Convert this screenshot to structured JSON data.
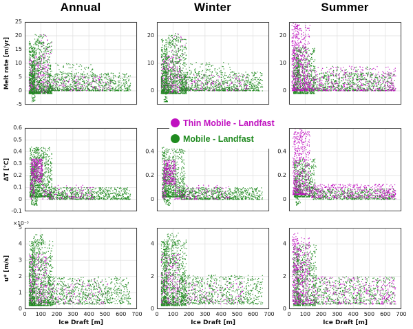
{
  "figure": {
    "background": "#ffffff",
    "grid_color": "#dedede",
    "axis_color": "#444444",
    "tick_text_color": "#111111"
  },
  "chart_data": {
    "type": "scatter",
    "columns": [
      "Annual",
      "Winter",
      "Summer"
    ],
    "xlabel": "Ice Draft [m]",
    "xlim": [
      0,
      700
    ],
    "xticks": [
      0,
      100,
      200,
      300,
      400,
      500,
      600,
      700
    ],
    "legend_position": "center between rows 1 and 2",
    "grid": true,
    "series": [
      {
        "name": "Thin Mobile - Landfast",
        "color": "#c011c0"
      },
      {
        "name": "Mobile - Landfast",
        "color": "#1f8a1f"
      }
    ],
    "rows": [
      {
        "key": "melt_rate",
        "ylabel": "Melt rate [m/yr]",
        "ylim": [
          -5,
          25
        ],
        "yticks_left": [
          -5,
          0,
          5,
          10,
          15,
          20,
          25
        ],
        "yticks_other": [
          0,
          10,
          20
        ],
        "multiplier": ""
      },
      {
        "key": "delta_t",
        "ylabel": "ΔT [°C]",
        "ylim": [
          -0.1,
          0.6
        ],
        "yticks_left": [
          -0.1,
          0,
          0.1,
          0.2,
          0.3,
          0.4,
          0.5,
          0.6
        ],
        "yticks_other": [
          0,
          0.2,
          0.4
        ],
        "multiplier": ""
      },
      {
        "key": "u_star",
        "ylabel": "u* [m/s]",
        "ylim": [
          0,
          5
        ],
        "yticks_left": [
          0,
          1,
          2,
          3,
          4,
          5
        ],
        "yticks_other": [
          0,
          2,
          4
        ],
        "multiplier": "×10⁻³"
      }
    ],
    "panels": [
      {
        "row": 0,
        "col": 0,
        "clusters": [
          {
            "s": 0,
            "n": 420,
            "x": [
              28,
              150
            ],
            "y": [
              -1,
              13
            ],
            "xp": 1.3,
            "yp": 2.0,
            "qx": 7
          },
          {
            "s": 0,
            "n": 190,
            "x": [
              150,
              540
            ],
            "y": [
              0,
              5.5
            ],
            "xp": 1.25,
            "yp": 1.8
          },
          {
            "s": 0,
            "n": 22,
            "x": [
              80,
              170
            ],
            "y": [
              13,
              21
            ],
            "xp": 1,
            "yp": 1
          },
          {
            "s": 1,
            "n": 850,
            "x": [
              28,
              170
            ],
            "y": [
              -1,
              18
            ],
            "xp": 1.35,
            "yp": 2.1,
            "qx": 7
          },
          {
            "s": 1,
            "n": 150,
            "x": [
              44,
              64
            ],
            "y": [
              -4,
              16
            ],
            "xp": 1,
            "yp": 1.2
          },
          {
            "s": 1,
            "n": 680,
            "x": [
              150,
              660
            ],
            "y": [
              0,
              6.5
            ],
            "xp": 1.15,
            "yp": 1.7
          },
          {
            "s": 1,
            "n": 55,
            "x": [
              190,
              430
            ],
            "y": [
              6,
              10
            ],
            "xp": 1.1,
            "yp": 1.4
          },
          {
            "s": 1,
            "n": 35,
            "x": [
              60,
              130
            ],
            "y": [
              17,
              20.5
            ],
            "xp": 1,
            "yp": 1
          }
        ]
      },
      {
        "row": 0,
        "col": 1,
        "clusters": [
          {
            "s": 0,
            "n": 400,
            "x": [
              28,
              150
            ],
            "y": [
              -1,
              13
            ],
            "xp": 1.3,
            "yp": 2.0,
            "qx": 7
          },
          {
            "s": 0,
            "n": 230,
            "x": [
              150,
              570
            ],
            "y": [
              0,
              6
            ],
            "xp": 1.25,
            "yp": 1.8
          },
          {
            "s": 0,
            "n": 16,
            "x": [
              90,
              180
            ],
            "y": [
              13,
              21
            ],
            "xp": 1,
            "yp": 1
          },
          {
            "s": 1,
            "n": 880,
            "x": [
              28,
              185
            ],
            "y": [
              -1,
              19
            ],
            "xp": 1.3,
            "yp": 2.0,
            "qx": 7
          },
          {
            "s": 1,
            "n": 130,
            "x": [
              44,
              66
            ],
            "y": [
              -4,
              17
            ],
            "xp": 1,
            "yp": 1.2
          },
          {
            "s": 1,
            "n": 720,
            "x": [
              150,
              660
            ],
            "y": [
              0,
              7
            ],
            "xp": 1.12,
            "yp": 1.7
          },
          {
            "s": 1,
            "n": 45,
            "x": [
              200,
              460
            ],
            "y": [
              7,
              10.5
            ],
            "xp": 1.1,
            "yp": 1.4
          },
          {
            "s": 1,
            "n": 30,
            "x": [
              70,
              150
            ],
            "y": [
              17,
              21
            ],
            "xp": 1,
            "yp": 1
          }
        ]
      },
      {
        "row": 0,
        "col": 2,
        "clusters": [
          {
            "s": 1,
            "n": 680,
            "x": [
              28,
              160
            ],
            "y": [
              -1,
              16
            ],
            "xp": 1.3,
            "yp": 2.0,
            "qx": 7
          },
          {
            "s": 1,
            "n": 620,
            "x": [
              150,
              660
            ],
            "y": [
              0,
              6.5
            ],
            "xp": 1.1,
            "yp": 1.7
          },
          {
            "s": 1,
            "n": 110,
            "x": [
              45,
              64
            ],
            "y": [
              0,
              15
            ],
            "xp": 1,
            "yp": 1.2
          },
          {
            "s": 1,
            "n": 70,
            "x": [
              200,
              520
            ],
            "y": [
              5,
              9
            ],
            "xp": 1.1,
            "yp": 1.4
          },
          {
            "s": 0,
            "n": 520,
            "x": [
              18,
              130
            ],
            "y": [
              0,
              24
            ],
            "xp": 1.25,
            "yp": 1.8,
            "qx": 6
          },
          {
            "s": 0,
            "n": 400,
            "x": [
              130,
              665
            ],
            "y": [
              0,
              9
            ],
            "xp": 1.1,
            "yp": 1.8
          },
          {
            "s": 0,
            "n": 55,
            "x": [
              22,
              60
            ],
            "y": [
              10,
              25
            ],
            "xp": 1,
            "yp": 1
          },
          {
            "s": 0,
            "n": 45,
            "x": [
              555,
              665
            ],
            "y": [
              0,
              8
            ],
            "xp": 1,
            "yp": 1.3
          }
        ]
      },
      {
        "row": 1,
        "col": 0,
        "clusters": [
          {
            "s": 1,
            "n": 780,
            "x": [
              32,
              170
            ],
            "y": [
              0.02,
              0.44
            ],
            "xp": 1.35,
            "yp": 2.0,
            "qx": 7
          },
          {
            "s": 1,
            "n": 170,
            "x": [
              42,
              80
            ],
            "y": [
              -0.05,
              0.3
            ],
            "xp": 1,
            "yp": 1.2
          },
          {
            "s": 1,
            "n": 680,
            "x": [
              150,
              660
            ],
            "y": [
              0,
              0.1
            ],
            "xp": 1.12,
            "yp": 1.6
          },
          {
            "s": 1,
            "n": 50,
            "x": [
              55,
              120
            ],
            "y": [
              0.3,
              0.44
            ],
            "xp": 1,
            "yp": 1
          },
          {
            "s": 0,
            "n": 270,
            "x": [
              40,
              110
            ],
            "y": [
              0.14,
              0.34
            ],
            "xp": 1.05,
            "yp": 1
          },
          {
            "s": 0,
            "n": 130,
            "x": [
              110,
              430
            ],
            "y": [
              0,
              0.12
            ],
            "xp": 1.25,
            "yp": 1.5
          },
          {
            "s": 0,
            "n": 45,
            "x": [
              32,
              62
            ],
            "y": [
              0,
              0.16
            ],
            "xp": 1,
            "yp": 1
          }
        ]
      },
      {
        "row": 1,
        "col": 1,
        "clusters": [
          {
            "s": 1,
            "n": 760,
            "x": [
              32,
              175
            ],
            "y": [
              0.02,
              0.44
            ],
            "xp": 1.3,
            "yp": 2.0,
            "qx": 7
          },
          {
            "s": 1,
            "n": 150,
            "x": [
              42,
              84
            ],
            "y": [
              -0.05,
              0.3
            ],
            "xp": 1,
            "yp": 1.2
          },
          {
            "s": 1,
            "n": 700,
            "x": [
              150,
              660
            ],
            "y": [
              0,
              0.1
            ],
            "xp": 1.12,
            "yp": 1.6
          },
          {
            "s": 0,
            "n": 250,
            "x": [
              40,
              115
            ],
            "y": [
              0.12,
              0.33
            ],
            "xp": 1.05,
            "yp": 1
          },
          {
            "s": 0,
            "n": 140,
            "x": [
              110,
              470
            ],
            "y": [
              0,
              0.12
            ],
            "xp": 1.25,
            "yp": 1.5
          },
          {
            "s": 0,
            "n": 35,
            "x": [
              32,
              60
            ],
            "y": [
              0,
              0.18
            ],
            "xp": 1,
            "yp": 1
          }
        ]
      },
      {
        "row": 1,
        "col": 2,
        "clusters": [
          {
            "s": 1,
            "n": 560,
            "x": [
              32,
              165
            ],
            "y": [
              0.02,
              0.34
            ],
            "xp": 1.3,
            "yp": 1.8,
            "qx": 7
          },
          {
            "s": 1,
            "n": 520,
            "x": [
              150,
              660
            ],
            "y": [
              0,
              0.09
            ],
            "xp": 1.1,
            "yp": 1.5
          },
          {
            "s": 1,
            "n": 70,
            "x": [
              40,
              70
            ],
            "y": [
              -0.05,
              0.2
            ],
            "xp": 1,
            "yp": 1.2
          },
          {
            "s": 0,
            "n": 430,
            "x": [
              26,
              130
            ],
            "y": [
              0.04,
              0.57
            ],
            "xp": 1.25,
            "yp": 1.7,
            "qx": 6
          },
          {
            "s": 0,
            "n": 420,
            "x": [
              130,
              665
            ],
            "y": [
              0.01,
              0.13
            ],
            "xp": 1.05,
            "yp": 1.4
          },
          {
            "s": 0,
            "n": 60,
            "x": [
              36,
              92
            ],
            "y": [
              0.3,
              0.6
            ],
            "xp": 1,
            "yp": 1
          },
          {
            "s": 0,
            "n": 40,
            "x": [
              560,
              665
            ],
            "y": [
              0,
              0.1
            ],
            "xp": 1,
            "yp": 1.2
          }
        ]
      },
      {
        "row": 2,
        "col": 0,
        "clusters": [
          {
            "s": 0,
            "n": 330,
            "x": [
              28,
              140
            ],
            "y": [
              0.3,
              3.4
            ],
            "xp": 1.25,
            "yp": 1.5,
            "qx": 7
          },
          {
            "s": 0,
            "n": 150,
            "x": [
              140,
              520
            ],
            "y": [
              0.3,
              1.8
            ],
            "xp": 1.2,
            "yp": 1.3
          },
          {
            "s": 1,
            "n": 820,
            "x": [
              28,
              175
            ],
            "y": [
              0.2,
              4.2
            ],
            "xp": 1.3,
            "yp": 1.8,
            "qx": 7
          },
          {
            "s": 1,
            "n": 150,
            "x": [
              44,
              64
            ],
            "y": [
              0.2,
              4.0
            ],
            "xp": 1,
            "yp": 1.2
          },
          {
            "s": 1,
            "n": 680,
            "x": [
              150,
              660
            ],
            "y": [
              0.3,
              2.0
            ],
            "xp": 1.12,
            "yp": 1.4
          },
          {
            "s": 1,
            "n": 45,
            "x": [
              55,
              125
            ],
            "y": [
              3.9,
              4.6
            ],
            "xp": 1,
            "yp": 1
          }
        ]
      },
      {
        "row": 2,
        "col": 1,
        "clusters": [
          {
            "s": 0,
            "n": 310,
            "x": [
              28,
              140
            ],
            "y": [
              0.3,
              3.4
            ],
            "xp": 1.25,
            "yp": 1.5,
            "qx": 7
          },
          {
            "s": 0,
            "n": 160,
            "x": [
              140,
              540
            ],
            "y": [
              0.3,
              1.8
            ],
            "xp": 1.2,
            "yp": 1.3
          },
          {
            "s": 1,
            "n": 840,
            "x": [
              28,
              185
            ],
            "y": [
              0.2,
              4.3
            ],
            "xp": 1.3,
            "yp": 1.8,
            "qx": 7
          },
          {
            "s": 1,
            "n": 140,
            "x": [
              44,
              66
            ],
            "y": [
              0.2,
              4.0
            ],
            "xp": 1,
            "yp": 1.2
          },
          {
            "s": 1,
            "n": 700,
            "x": [
              150,
              660
            ],
            "y": [
              0.3,
              2.1
            ],
            "xp": 1.12,
            "yp": 1.4
          },
          {
            "s": 1,
            "n": 40,
            "x": [
              60,
              135
            ],
            "y": [
              3.9,
              4.7
            ],
            "xp": 1,
            "yp": 1
          }
        ]
      },
      {
        "row": 2,
        "col": 2,
        "clusters": [
          {
            "s": 1,
            "n": 640,
            "x": [
              28,
              170
            ],
            "y": [
              0.2,
              4.0
            ],
            "xp": 1.3,
            "yp": 1.7,
            "qx": 7
          },
          {
            "s": 1,
            "n": 600,
            "x": [
              150,
              660
            ],
            "y": [
              0.3,
              2.0
            ],
            "xp": 1.1,
            "yp": 1.4
          },
          {
            "s": 1,
            "n": 100,
            "x": [
              45,
              64
            ],
            "y": [
              0.2,
              3.8
            ],
            "xp": 1,
            "yp": 1.2
          },
          {
            "s": 0,
            "n": 400,
            "x": [
              22,
              130
            ],
            "y": [
              0.3,
              4.4
            ],
            "xp": 1.25,
            "yp": 1.5,
            "qx": 6
          },
          {
            "s": 0,
            "n": 300,
            "x": [
              130,
              660
            ],
            "y": [
              0.3,
              2.0
            ],
            "xp": 1.1,
            "yp": 1.3
          },
          {
            "s": 0,
            "n": 55,
            "x": [
              22,
              55
            ],
            "y": [
              1.5,
              4.7
            ],
            "xp": 1,
            "yp": 1
          },
          {
            "s": 0,
            "n": 40,
            "x": [
              555,
              665
            ],
            "y": [
              0.3,
              1.8
            ],
            "xp": 1,
            "yp": 1.2
          }
        ]
      }
    ]
  }
}
